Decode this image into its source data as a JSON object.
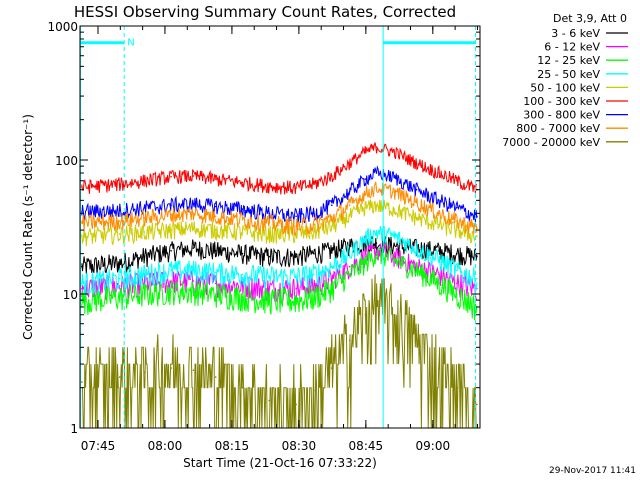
{
  "chart_data": {
    "type": "line",
    "title": "HESSI Observing Summary Count Rates, Corrected",
    "xlabel": "Start Time (21-Oct-16 07:33:22)",
    "ylabel": "Corrected Count Rate (s⁻¹ detector⁻¹)",
    "yscale": "log",
    "ylim": [
      1,
      1000
    ],
    "xlim_minutes": [
      7.6,
      97.2
    ],
    "x_ticks": [
      {
        "label": "07:45",
        "minutes": 11.63
      },
      {
        "label": "08:00",
        "minutes": 26.63
      },
      {
        "label": "08:15",
        "minutes": 41.63
      },
      {
        "label": "08:30",
        "minutes": 56.63
      },
      {
        "label": "08:45",
        "minutes": 71.63
      },
      {
        "label": "09:00",
        "minutes": 86.63
      }
    ],
    "y_ticks": [
      {
        "label": "1",
        "value": 1
      },
      {
        "label": "10",
        "value": 10
      },
      {
        "label": "100",
        "value": 100
      },
      {
        "label": "1000",
        "value": 1000
      }
    ],
    "grid": false,
    "legend_position": "right",
    "legend_header": "Det 3,9, Att 0",
    "x_sample_minutes": [
      8,
      16.5,
      22,
      28,
      33,
      38,
      44,
      50,
      56,
      60,
      64,
      68,
      71.5,
      74,
      78,
      83,
      88,
      92,
      96.5
    ],
    "series": [
      {
        "name": "3 - 6 keV",
        "color": "#000000",
        "values": [
          16,
          17,
          19,
          21,
          22,
          21,
          20,
          19,
          19,
          20,
          21,
          23,
          24,
          24,
          23,
          22,
          21,
          20,
          19
        ]
      },
      {
        "name": "6 - 12 keV",
        "color": "#ff00ff",
        "values": [
          11,
          11.5,
          12,
          12.5,
          12.5,
          12,
          11.5,
          11,
          11,
          11.5,
          13,
          16,
          19,
          21,
          19,
          16,
          14,
          12,
          11
        ]
      },
      {
        "name": "12 - 25 keV",
        "color": "#00ff00",
        "values": [
          9,
          9.5,
          10,
          10.5,
          10.5,
          10,
          9.5,
          9,
          9,
          9.5,
          11,
          14,
          17,
          20,
          18,
          15,
          12,
          10,
          8
        ]
      },
      {
        "name": "25 - 50 keV",
        "color": "#00ffff",
        "values": [
          12,
          13,
          14,
          15,
          15,
          14.5,
          14,
          13.5,
          13.5,
          14,
          16,
          20,
          26,
          29,
          27,
          22,
          18,
          15,
          13
        ]
      },
      {
        "name": "50 - 100 keV",
        "color": "#cccc00",
        "values": [
          27,
          28,
          29,
          30,
          31,
          30,
          29,
          28,
          28,
          29,
          32,
          38,
          44,
          46,
          43,
          37,
          33,
          30,
          27
        ]
      },
      {
        "name": "100 - 300 keV",
        "color": "#ff0000",
        "values": [
          63,
          66,
          70,
          75,
          76,
          72,
          68,
          64,
          62,
          66,
          76,
          95,
          115,
          125,
          115,
          95,
          80,
          70,
          60
        ]
      },
      {
        "name": "300 - 800 keV",
        "color": "#0000ff",
        "values": [
          41,
          42,
          44,
          46,
          47,
          45,
          43,
          40,
          38,
          40,
          46,
          58,
          72,
          80,
          74,
          60,
          50,
          44,
          38
        ]
      },
      {
        "name": "800 - 7000 keV",
        "color": "#ff8c00",
        "values": [
          34,
          35,
          37,
          39,
          40,
          38,
          36,
          34,
          32,
          33,
          37,
          46,
          56,
          62,
          58,
          48,
          40,
          35,
          31
        ]
      },
      {
        "name": "7000 - 20000 keV",
        "color": "#808000",
        "values": [
          2.2,
          2.4,
          2.6,
          2.8,
          2.7,
          2.4,
          2.0,
          1.6,
          1.5,
          1.9,
          2.8,
          4.5,
          7.0,
          8.5,
          7.0,
          4.5,
          2.8,
          2.0,
          1.5
        ]
      }
    ],
    "flags": {
      "vertical_markers_minutes": [
        7.7,
        17.5,
        75.5,
        96.2
      ],
      "bars": [
        {
          "start_minutes": 7.7,
          "end_minutes": 17.5,
          "value": 750
        },
        {
          "start_minutes": 75.5,
          "end_minutes": 96.2,
          "value": 750
        }
      ],
      "bar_label": "N"
    },
    "footer_date": "29-Nov-2017 11:41"
  }
}
